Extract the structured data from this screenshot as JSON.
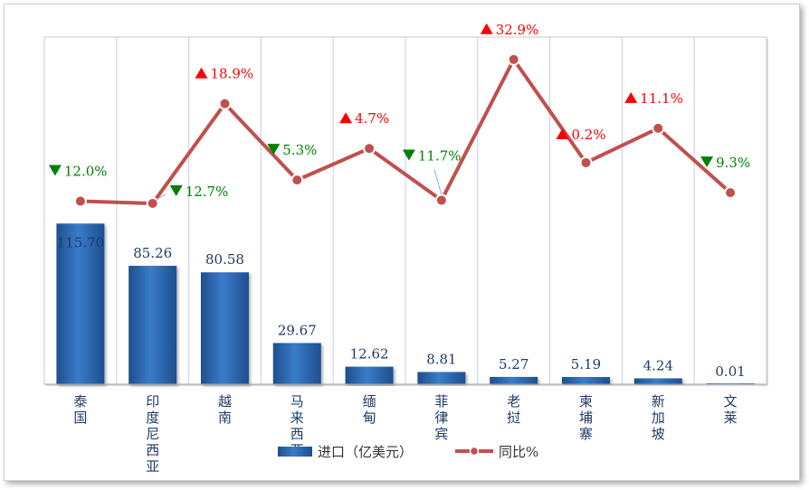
{
  "chart_data": {
    "type": "bar",
    "categories": [
      "泰国",
      "印度尼西亚",
      "越南",
      "马来西亚",
      "缅甸",
      "菲律宾",
      "老挝",
      "柬埔寨",
      "新加坡",
      "文莱"
    ],
    "series": [
      {
        "name": "进口（亿美元）",
        "type": "bar",
        "values": [
          115.7,
          85.26,
          80.58,
          29.67,
          12.62,
          8.81,
          5.27,
          5.19,
          4.24,
          0.01
        ],
        "labels": [
          "115.70",
          "85.26",
          "80.58",
          "29.67",
          "12.62",
          "8.81",
          "5.27",
          "5.19",
          "4.24",
          "0.01"
        ],
        "color": "#2e6bb5"
      },
      {
        "name": "同比%",
        "type": "line",
        "values": [
          -12.0,
          -12.7,
          18.9,
          -5.3,
          4.7,
          -11.7,
          32.9,
          0.2,
          11.1,
          -9.3
        ],
        "labels": [
          "12.0%",
          "12.7%",
          "18.9%",
          "5.3%",
          "4.7%",
          "11.7%",
          "32.9%",
          "0.2%",
          "11.1%",
          "9.3%"
        ],
        "color": "#c0504d"
      }
    ],
    "up_color": "#ff0000",
    "down_color": "#008000",
    "bar_ylim": [
      0,
      250
    ],
    "line_ylim": [
      -70,
      40
    ],
    "grid": "vertical",
    "legend": "bottom"
  }
}
